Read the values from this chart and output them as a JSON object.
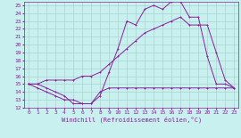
{
  "xlabel": "Windchill (Refroidissement éolien,°C)",
  "bg_color": "#c8f0ee",
  "grid_color": "#aad4d0",
  "line_color": "#882299",
  "xlim": [
    -0.5,
    23.5
  ],
  "ylim": [
    12,
    25.5
  ],
  "xticks": [
    0,
    1,
    2,
    3,
    4,
    5,
    6,
    7,
    8,
    9,
    10,
    11,
    12,
    13,
    14,
    15,
    16,
    17,
    18,
    19,
    20,
    21,
    22,
    23
  ],
  "yticks": [
    12,
    13,
    14,
    15,
    16,
    17,
    18,
    19,
    20,
    21,
    22,
    23,
    24,
    25
  ],
  "line1_x": [
    0,
    1,
    2,
    3,
    4,
    5,
    6,
    7,
    8,
    9,
    10,
    11,
    12,
    13,
    14,
    15,
    16,
    17,
    18,
    19,
    20,
    21,
    22,
    23
  ],
  "line1_y": [
    15,
    15,
    14.5,
    14,
    13.5,
    12.5,
    12.5,
    12.5,
    14,
    14.5,
    14.5,
    14.5,
    14.5,
    14.5,
    14.5,
    14.5,
    14.5,
    14.5,
    14.5,
    14.5,
    14.5,
    14.5,
    14.5,
    14.5
  ],
  "line2_x": [
    0,
    1,
    2,
    3,
    4,
    5,
    6,
    7,
    8,
    9,
    10,
    11,
    12,
    13,
    14,
    15,
    16,
    17,
    18,
    19,
    20,
    21,
    22,
    23
  ],
  "line2_y": [
    15,
    15,
    15.5,
    15.5,
    15.5,
    15.5,
    16,
    16,
    16.5,
    17.5,
    18.5,
    19.5,
    20.5,
    21.5,
    22,
    22.5,
    23,
    23.5,
    22.5,
    22.5,
    22.5,
    19,
    15.5,
    14.5
  ],
  "line3_x": [
    0,
    1,
    2,
    3,
    4,
    5,
    6,
    7,
    8,
    9,
    10,
    11,
    12,
    13,
    14,
    15,
    16,
    17,
    18,
    19,
    20,
    21,
    22,
    23
  ],
  "line3_y": [
    15,
    14.5,
    14,
    13.5,
    13,
    13,
    12.5,
    12.5,
    13.5,
    16.5,
    19.5,
    23,
    22.5,
    24.5,
    25,
    24.5,
    25.5,
    25.5,
    23.5,
    23.5,
    18.5,
    15,
    15,
    14.5
  ]
}
